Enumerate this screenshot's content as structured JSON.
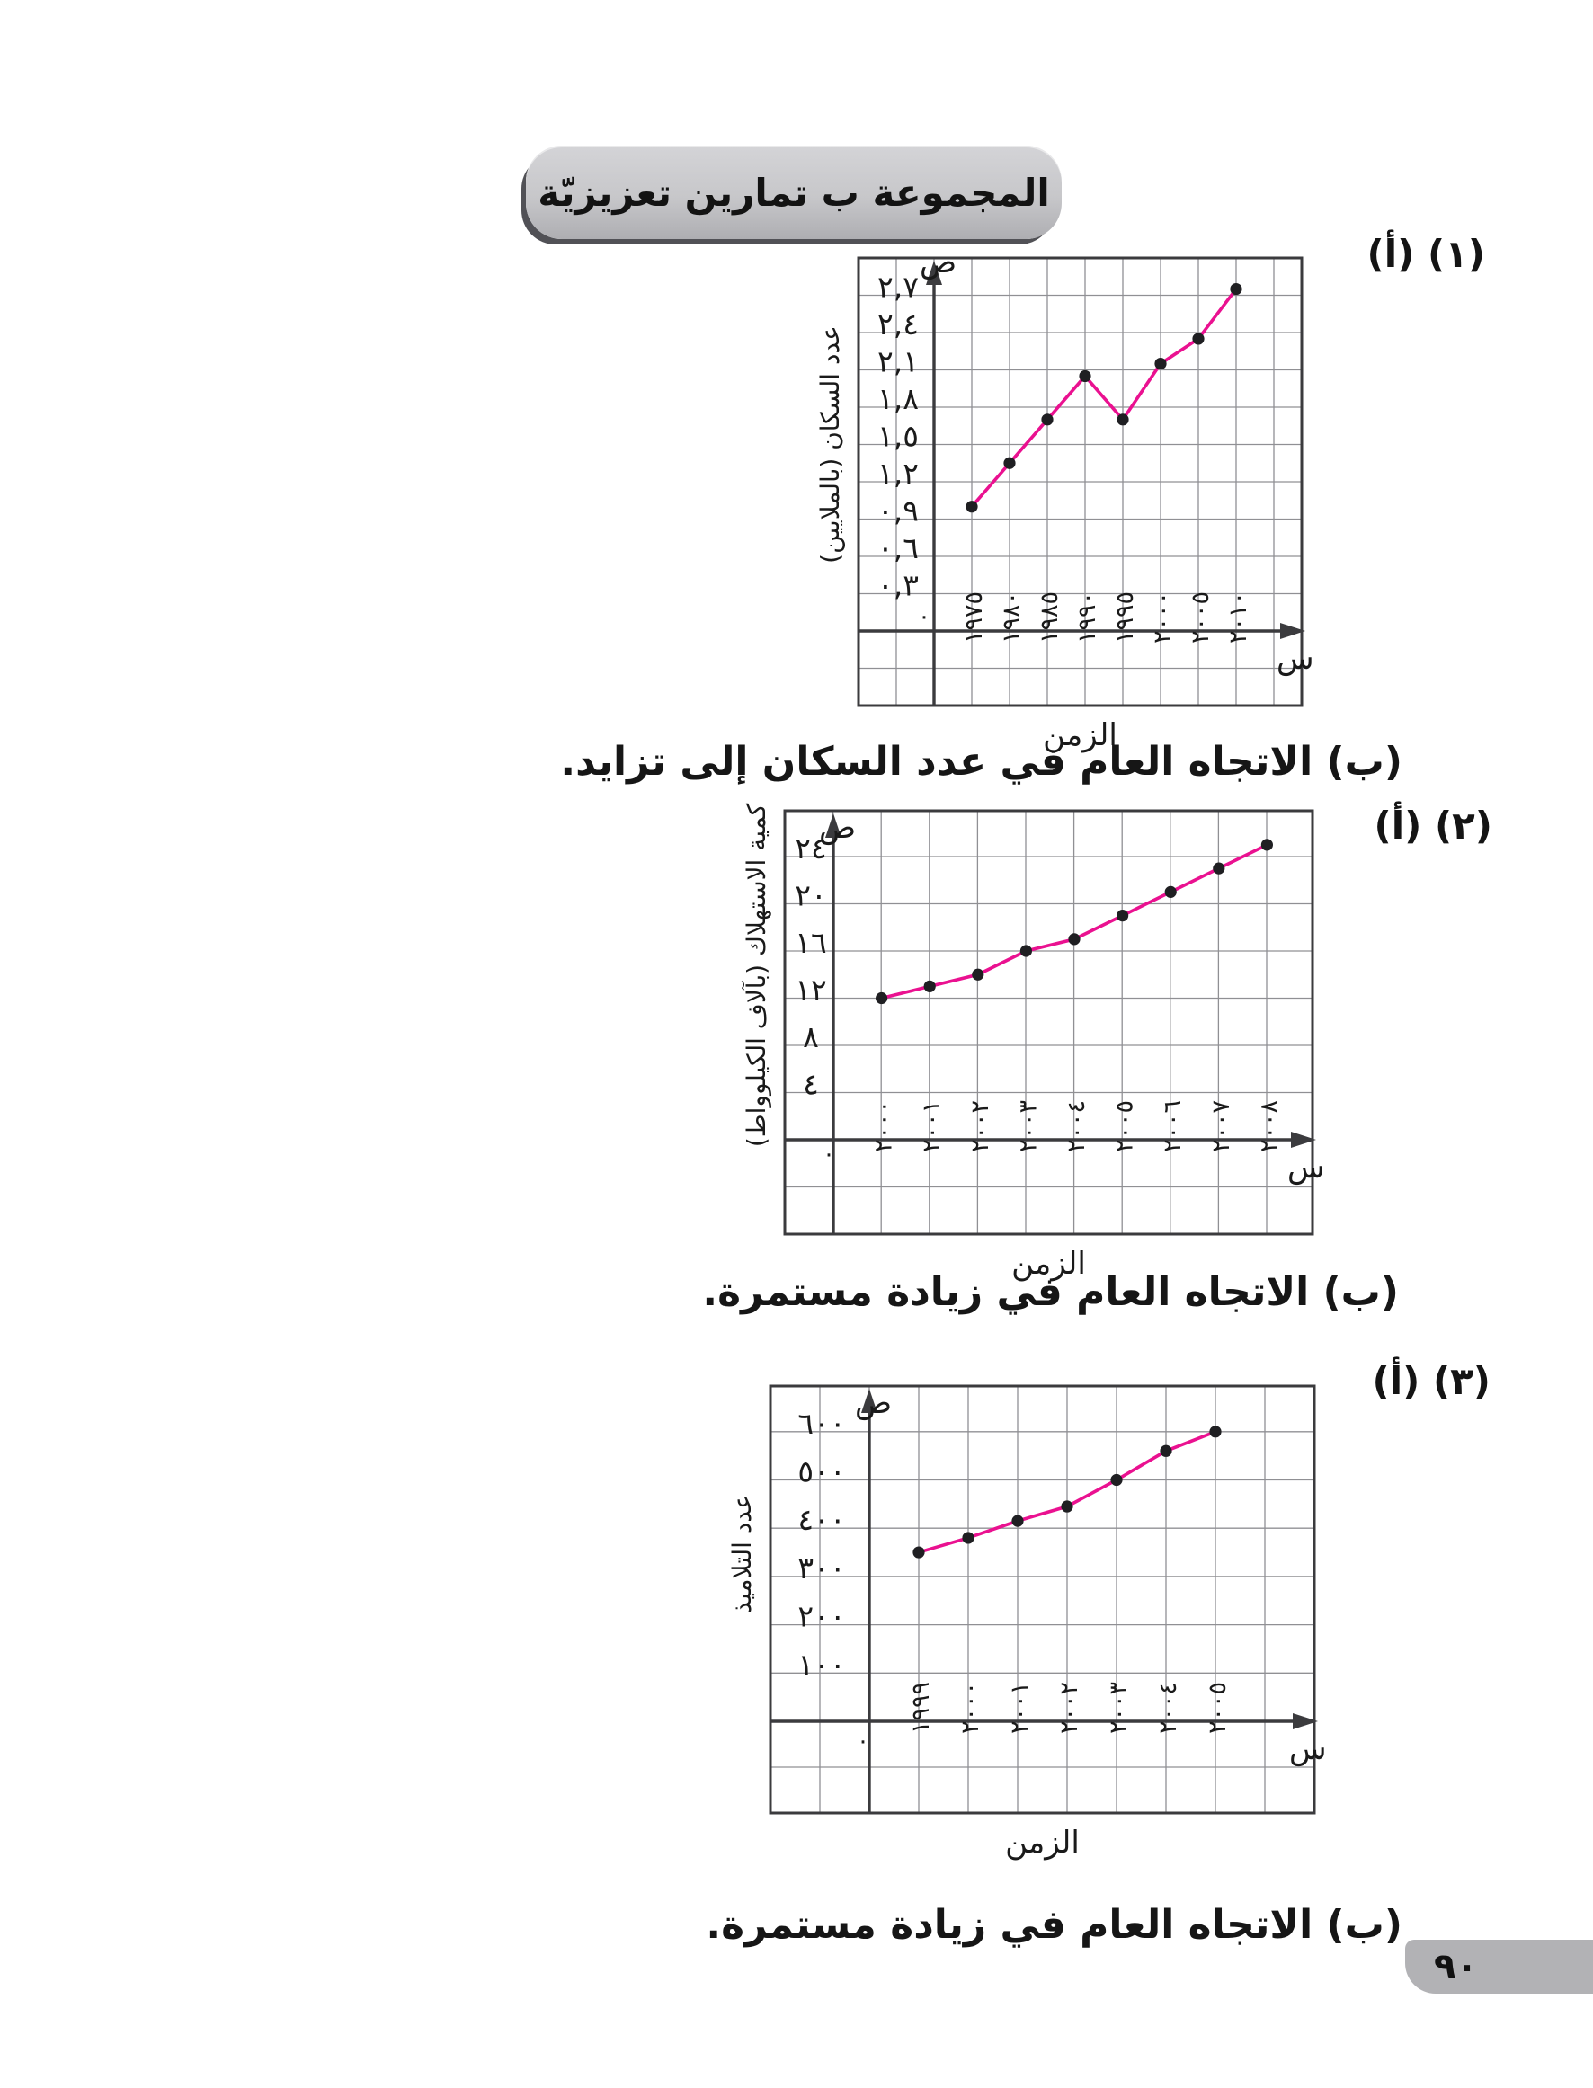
{
  "banner": {
    "title": "المجموعة ب تمارين تعزيزيّة"
  },
  "page": {
    "number": "٩٠"
  },
  "colors": {
    "line": "#ea1190",
    "point": "#1f1f22",
    "grid": "#909094",
    "axis": "#3b3b3e",
    "text": "#1a1a1a",
    "banner_bg": "#c7c7ca",
    "tab_bg": "#b2b2b5"
  },
  "sections": [
    {
      "item_label": "(١) (أ)",
      "answer_text": "(ب) الاتجاه العام في عدد السكان إلى تزايد."
    },
    {
      "item_label": "(٢) (أ)",
      "answer_text": "(ب) الاتجاه العام في زيادة مستمرة."
    },
    {
      "item_label": "(٣) (أ)",
      "answer_text": "(ب) الاتجاه العام في زيادة مستمرة."
    }
  ],
  "chart_data": [
    {
      "type": "line",
      "title": "",
      "ylabel": "عدد السكان (بالملايين)",
      "xlabel": "الزمن",
      "y_axis_symbol": "ص",
      "x_axis_symbol": "س",
      "origin_label": "٠",
      "categories": [
        "١٩٧٥",
        "١٩٨٠",
        "١٩٨٥",
        "١٩٩٠",
        "١٩٩٥",
        "٢٠٠٠",
        "٢٠٠٥",
        "٢٠١٠"
      ],
      "values": [
        1.0,
        1.35,
        1.7,
        2.05,
        1.7,
        2.15,
        2.35,
        2.75
      ],
      "y_ticks": [
        {
          "label": "٢,٧",
          "value": 2.7
        },
        {
          "label": "٢,٤",
          "value": 2.4
        },
        {
          "label": "٢,١",
          "value": 2.1
        },
        {
          "label": "١,٨",
          "value": 1.8
        },
        {
          "label": "١,٥",
          "value": 1.5
        },
        {
          "label": "١,٢",
          "value": 1.2
        },
        {
          "label": "٠,٩",
          "value": 0.9
        },
        {
          "label": "٠,٦",
          "value": 0.6
        },
        {
          "label": "٠,٣",
          "value": 0.3
        }
      ],
      "y_step": 0.3,
      "ylim": [
        0,
        3
      ],
      "grid": true,
      "geom": {
        "l": 955,
        "t": 287,
        "r": 1448,
        "b": 785,
        "ax": 1039,
        "ay": 702,
        "cw": 42,
        "rh": 41.5,
        "rhb": 41.5,
        "sym_dy": 16,
        "zero": [
          -18,
          -8
        ]
      }
    },
    {
      "type": "line",
      "title": "",
      "ylabel": "كمية الاستهلاك (بآلاف الكيلوواط)",
      "xlabel": "الزمن",
      "y_axis_symbol": "ص",
      "x_axis_symbol": "س",
      "origin_label": "٠",
      "categories": [
        "٢٠٠٠",
        "٢٠٠١",
        "٢٠٠٢",
        "٢٠٠٣",
        "٢٠٠٤",
        "٢٠٠٥",
        "٢٠٠٦",
        "٢٠٠٧",
        "٢٠٠٨"
      ],
      "values": [
        12,
        13,
        14,
        16,
        17,
        19,
        21,
        23,
        25
      ],
      "y_ticks": [
        {
          "label": "٢٤",
          "value": 24
        },
        {
          "label": "٢٠",
          "value": 20
        },
        {
          "label": "١٦",
          "value": 16
        },
        {
          "label": "١٢",
          "value": 12
        },
        {
          "label": "٨",
          "value": 8
        },
        {
          "label": "٤",
          "value": 4
        }
      ],
      "y_step": 4,
      "ylim": [
        0,
        28
      ],
      "grid": true,
      "geom": {
        "l": 873,
        "t": 902,
        "r": 1460,
        "b": 1373,
        "ax": 927,
        "ay": 1268,
        "cw": 53.6,
        "rh": 52.5,
        "rhb": 52.5,
        "sym_dy": 30,
        "zero": [
          -12,
          24
        ]
      }
    },
    {
      "type": "line",
      "title": "",
      "ylabel": "عدد التلاميذ",
      "xlabel": "الزمن",
      "y_axis_symbol": "ص",
      "x_axis_symbol": "س",
      "origin_label": "٠",
      "categories": [
        "١٩٩٩",
        "٢٠٠٠",
        "٢٠٠١",
        "٢٠٠٢",
        "٢٠٠٣",
        "٢٠٠٤",
        "٢٠٠٥"
      ],
      "values": [
        350,
        380,
        415,
        445,
        500,
        560,
        600
      ],
      "y_ticks": [
        {
          "label": "٦٠٠",
          "value": 600
        },
        {
          "label": "٥٠٠",
          "value": 500
        },
        {
          "label": "٤٠٠",
          "value": 400
        },
        {
          "label": "٣٠٠",
          "value": 300
        },
        {
          "label": "٢٠٠",
          "value": 200
        },
        {
          "label": "١٠٠",
          "value": 100
        }
      ],
      "y_step": 100,
      "ylim": [
        0,
        694
      ],
      "grid": true,
      "geom": {
        "l": 857,
        "t": 1542,
        "r": 1462,
        "b": 2017,
        "ax": 967,
        "ay": 1915,
        "cw": 55,
        "rh": 53.7,
        "rhb": 51,
        "sym_dy": 30,
        "zero": [
          -14,
          30
        ]
      }
    }
  ]
}
